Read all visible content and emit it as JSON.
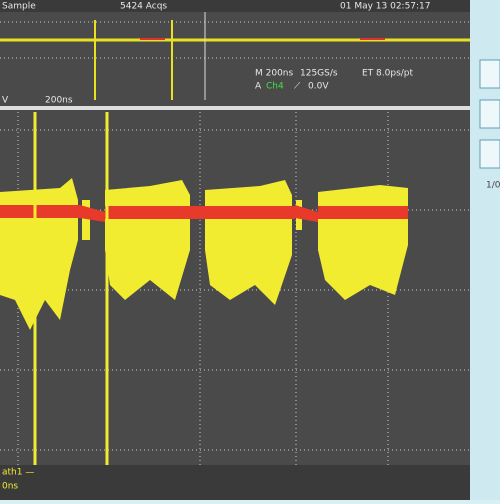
{
  "status_bar": {
    "mode": "Sample",
    "acquisitions": "5424 Acqs",
    "timestamp": "01 May 13 02:57:17"
  },
  "settings": {
    "horizontal": "M 200ns",
    "sample_rate": "125GS/s",
    "equivalent_time": "ET 8.0ps/pt",
    "trigger_source": "A",
    "trigger_channel": "Ch4",
    "trigger_level": "0.0V"
  },
  "zoom": {
    "channel_scale": "V",
    "time_div": "200ns"
  },
  "side_panel": {
    "label": "1/0"
  },
  "bottom": {
    "math": "ath1 —",
    "time": "0ns"
  }
}
